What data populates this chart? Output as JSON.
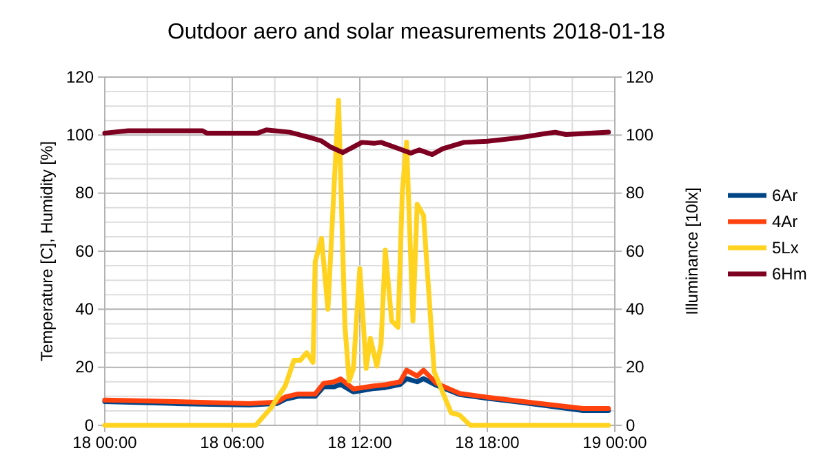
{
  "chart_data": {
    "type": "line",
    "title": "Outdoor aero and solar measurements 2018-01-18",
    "ylabel": "Temperature [C], Humidity [%]",
    "y2label": "Illuminance [10lx]",
    "xlim": [
      "2018-01-18T00:00",
      "2018-01-19T00:00"
    ],
    "xticks": [
      {
        "value": "2018-01-18T00:00",
        "label": "18 00:00"
      },
      {
        "value": "2018-01-18T06:00",
        "label": "18 06:00"
      },
      {
        "value": "2018-01-18T12:00",
        "label": "18 12:00"
      },
      {
        "value": "2018-01-18T18:00",
        "label": "18 18:00"
      },
      {
        "value": "2018-01-19T00:00",
        "label": "19 00:00"
      }
    ],
    "ylim": [
      0,
      120
    ],
    "yticks": [
      0,
      20,
      40,
      60,
      80,
      100,
      120
    ],
    "y2lim": [
      0,
      120
    ],
    "y2ticks": [
      0,
      20,
      40,
      60,
      80,
      100,
      120
    ],
    "grid": true,
    "legend": "right",
    "line_style": "solid",
    "marker": "none",
    "series": [
      {
        "name": "6Ar",
        "color": "#004586",
        "x": [
          "2018-01-18T00:00",
          "2018-01-18T03:18",
          "2018-01-18T06:48",
          "2018-01-18T08:06",
          "2018-01-18T08:30",
          "2018-01-18T09:06",
          "2018-01-18T09:54",
          "2018-01-18T10:18",
          "2018-01-18T10:48",
          "2018-01-18T11:06",
          "2018-01-18T11:42",
          "2018-01-18T12:36",
          "2018-01-18T13:12",
          "2018-01-18T13:54",
          "2018-01-18T14:12",
          "2018-01-18T14:42",
          "2018-01-18T15:00",
          "2018-01-18T15:36",
          "2018-01-18T16:42",
          "2018-01-18T18:00",
          "2018-01-18T19:42",
          "2018-01-18T22:30",
          "2018-01-18T23:42"
        ],
        "values": [
          8.2,
          7.5,
          7,
          7.5,
          9,
          10,
          10,
          13.3,
          13.3,
          14.1,
          11.5,
          12.6,
          13,
          14.1,
          16.1,
          15,
          16.1,
          13.8,
          10.6,
          9.3,
          7.8,
          5.1,
          5.1
        ]
      },
      {
        "name": "4Ar",
        "color": "#ff420e",
        "x": [
          "2018-01-18T00:00",
          "2018-01-18T03:18",
          "2018-01-18T06:48",
          "2018-01-18T08:06",
          "2018-01-18T08:30",
          "2018-01-18T09:06",
          "2018-01-18T09:54",
          "2018-01-18T10:18",
          "2018-01-18T10:48",
          "2018-01-18T11:06",
          "2018-01-18T11:42",
          "2018-01-18T12:36",
          "2018-01-18T13:12",
          "2018-01-18T13:54",
          "2018-01-18T14:12",
          "2018-01-18T14:42",
          "2018-01-18T15:00",
          "2018-01-18T15:36",
          "2018-01-18T16:42",
          "2018-01-18T18:00",
          "2018-01-18T19:42",
          "2018-01-18T22:30",
          "2018-01-18T23:42"
        ],
        "values": [
          8.7,
          8.2,
          7.5,
          8,
          9.8,
          10.8,
          10.8,
          14.5,
          15,
          16,
          12.5,
          13.5,
          14,
          15,
          19,
          17,
          19,
          14.5,
          11,
          9.7,
          8.2,
          5.8,
          5.8
        ]
      },
      {
        "name": "5Lx",
        "color": "#ffd320",
        "axis": "y2",
        "x": [
          "2018-01-18T00:00",
          "2018-01-18T07:06",
          "2018-01-18T07:48",
          "2018-01-18T08:30",
          "2018-01-18T08:54",
          "2018-01-18T09:12",
          "2018-01-18T09:30",
          "2018-01-18T09:48",
          "2018-01-18T09:54",
          "2018-01-18T10:12",
          "2018-01-18T10:30",
          "2018-01-18T10:48",
          "2018-01-18T11:00",
          "2018-01-18T11:18",
          "2018-01-18T11:30",
          "2018-01-18T11:42",
          "2018-01-18T12:00",
          "2018-01-18T12:18",
          "2018-01-18T12:30",
          "2018-01-18T12:48",
          "2018-01-18T13:00",
          "2018-01-18T13:12",
          "2018-01-18T13:30",
          "2018-01-18T13:48",
          "2018-01-18T14:00",
          "2018-01-18T14:12",
          "2018-01-18T14:30",
          "2018-01-18T14:42",
          "2018-01-18T15:00",
          "2018-01-18T15:30",
          "2018-01-18T16:18",
          "2018-01-18T16:42",
          "2018-01-18T17:12",
          "2018-01-18T23:42"
        ],
        "values": [
          0,
          0,
          5.8,
          13.7,
          22.4,
          22.4,
          25,
          21.7,
          56.4,
          64.4,
          40,
          83.5,
          112,
          34.3,
          15.3,
          19.6,
          54,
          19.6,
          30,
          20.4,
          28,
          60.4,
          36,
          33.8,
          80.2,
          97.6,
          36,
          76.2,
          72.3,
          18.5,
          4.3,
          3.5,
          0,
          0
        ]
      },
      {
        "name": "6Hm",
        "color": "#7e0021",
        "x": [
          "2018-01-18T00:00",
          "2018-01-18T01:06",
          "2018-01-18T04:36",
          "2018-01-18T04:48",
          "2018-01-18T07:12",
          "2018-01-18T07:36",
          "2018-01-18T08:42",
          "2018-01-18T09:36",
          "2018-01-18T10:12",
          "2018-01-18T10:36",
          "2018-01-18T11:12",
          "2018-01-18T12:06",
          "2018-01-18T12:42",
          "2018-01-18T13:00",
          "2018-01-18T13:42",
          "2018-01-18T14:24",
          "2018-01-18T14:48",
          "2018-01-18T15:24",
          "2018-01-18T15:54",
          "2018-01-18T16:54",
          "2018-01-18T18:00",
          "2018-01-18T19:30",
          "2018-01-18T20:48",
          "2018-01-18T21:12",
          "2018-01-18T21:42",
          "2018-01-18T23:42"
        ],
        "values": [
          100.7,
          101.5,
          101.5,
          100.7,
          100.7,
          101.8,
          101,
          99.3,
          98,
          96,
          94,
          97.5,
          97.2,
          97.5,
          95.7,
          93.8,
          94.9,
          93.3,
          95.3,
          97.5,
          97.9,
          99.1,
          100.6,
          101,
          100.2,
          101
        ]
      }
    ]
  }
}
